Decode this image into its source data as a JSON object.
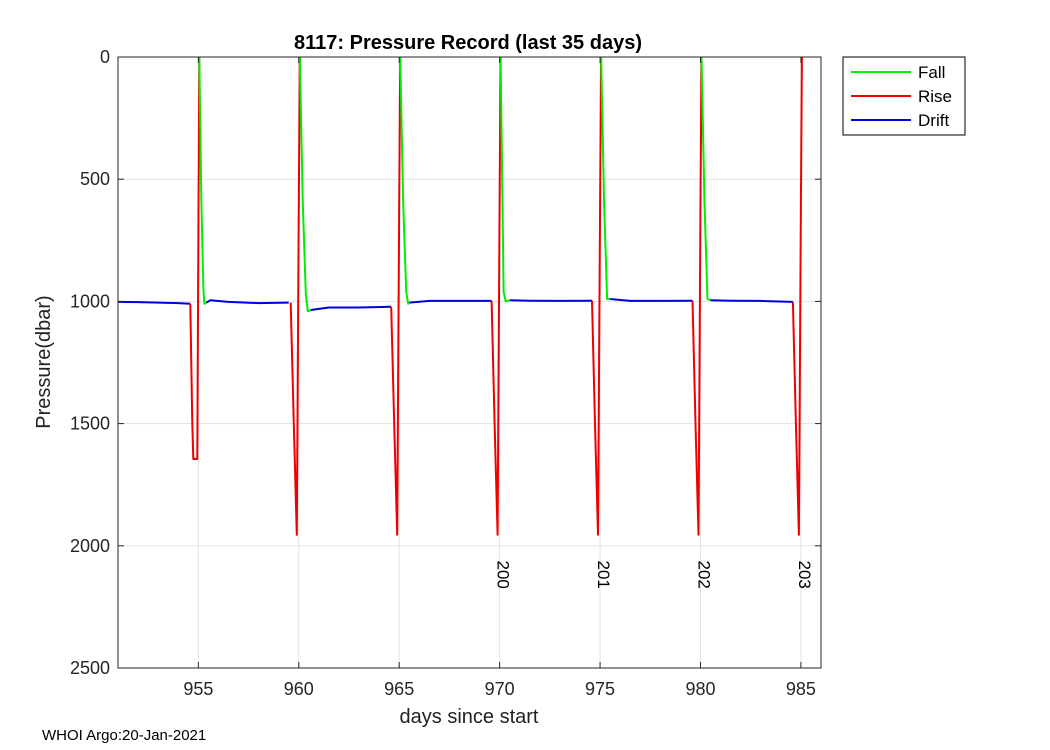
{
  "chart_data": {
    "type": "line",
    "title": "8117: Pressure Record (last 35 days)",
    "xlabel": "days since start",
    "ylabel": "Pressure(dbar)",
    "xlim": [
      951,
      986
    ],
    "ylim": [
      2500,
      0
    ],
    "y_reversed": true,
    "xticks": [
      955,
      960,
      965,
      970,
      975,
      980,
      985
    ],
    "yticks": [
      0,
      500,
      1000,
      1500,
      2000,
      2500
    ],
    "grid": true,
    "legend_position": "top-right outside",
    "legend": [
      "Fall",
      "Rise",
      "Drift"
    ],
    "colors": {
      "Fall": "#00ee00",
      "Rise": "#ee0000",
      "Drift": "#0000dd"
    },
    "series": [
      {
        "name": "Drift",
        "segments": [
          {
            "x": [
              951.0,
              952.0,
              953.0,
              954.0,
              954.6
            ],
            "y": [
              1002,
              1003,
              1005,
              1007,
              1010
            ]
          },
          {
            "x": [
              955.4,
              955.6,
              956.5,
              958.0,
              959.5
            ],
            "y": [
              1005,
              995,
              1002,
              1007,
              1005
            ]
          },
          {
            "x": [
              960.6,
              961.5,
              963.0,
              964.6
            ],
            "y": [
              1035,
              1025,
              1025,
              1022
            ]
          },
          {
            "x": [
              965.5,
              966.5,
              968.0,
              969.6
            ],
            "y": [
              1005,
              998,
              998,
              998
            ]
          },
          {
            "x": [
              970.5,
              971.5,
              973.0,
              974.6
            ],
            "y": [
              995,
              997,
              998,
              997
            ]
          },
          {
            "x": [
              975.5,
              976.5,
              978.0,
              979.6
            ],
            "y": [
              990,
              998,
              998,
              997
            ]
          },
          {
            "x": [
              980.5,
              981.5,
              983.0,
              984.6
            ],
            "y": [
              995,
              997,
              998,
              1002
            ]
          }
        ]
      },
      {
        "name": "Rise",
        "segments": [
          {
            "x": [
              954.6,
              954.7,
              954.75,
              954.95,
              955.0,
              955.05
            ],
            "y": [
              1010,
              1500,
              1645,
              1645,
              800,
              0
            ]
          },
          {
            "x": [
              959.6,
              959.75,
              959.9,
              960.0,
              960.05
            ],
            "y": [
              1005,
              1500,
              1955,
              600,
              0
            ]
          },
          {
            "x": [
              964.6,
              964.75,
              964.9,
              965.0,
              965.05
            ],
            "y": [
              1022,
              1500,
              1955,
              600,
              0
            ]
          },
          {
            "x": [
              969.6,
              969.75,
              969.9,
              970.0,
              970.05
            ],
            "y": [
              998,
              1500,
              1955,
              600,
              0
            ]
          },
          {
            "x": [
              974.6,
              974.75,
              974.9,
              975.0,
              975.05
            ],
            "y": [
              997,
              1500,
              1955,
              600,
              0
            ]
          },
          {
            "x": [
              979.6,
              979.75,
              979.9,
              980.0,
              980.05
            ],
            "y": [
              997,
              1500,
              1955,
              600,
              0
            ]
          },
          {
            "x": [
              984.6,
              984.75,
              984.9,
              985.0,
              985.05
            ],
            "y": [
              1002,
              1500,
              1955,
              600,
              0
            ]
          }
        ]
      },
      {
        "name": "Fall",
        "segments": [
          {
            "x": [
              955.05,
              955.15,
              955.25,
              955.3,
              955.4
            ],
            "y": [
              0,
              600,
              950,
              1010,
              1005
            ]
          },
          {
            "x": [
              960.05,
              960.2,
              960.35,
              960.45,
              960.6
            ],
            "y": [
              0,
              600,
              970,
              1040,
              1035
            ]
          },
          {
            "x": [
              965.05,
              965.2,
              965.35,
              965.45,
              965.5
            ],
            "y": [
              0,
              600,
              960,
              1010,
              1005
            ]
          },
          {
            "x": [
              970.05,
              970.2,
              970.3,
              970.5
            ],
            "y": [
              0,
              960,
              1000,
              995
            ]
          },
          {
            "x": [
              975.05,
              975.2,
              975.35,
              975.5
            ],
            "y": [
              0,
              600,
              990,
              990
            ]
          },
          {
            "x": [
              980.05,
              980.2,
              980.35,
              980.5
            ],
            "y": [
              0,
              600,
              990,
              995
            ]
          }
        ]
      }
    ],
    "annotations": [
      {
        "text": "200",
        "x": 969.9,
        "y": 2060,
        "rotation": "vertical"
      },
      {
        "text": "201",
        "x": 974.9,
        "y": 2060,
        "rotation": "vertical"
      },
      {
        "text": "202",
        "x": 979.9,
        "y": 2060,
        "rotation": "vertical"
      },
      {
        "text": "203",
        "x": 984.9,
        "y": 2060,
        "rotation": "vertical"
      }
    ]
  },
  "footer": {
    "text": "WHOI Argo:20-Jan-2021"
  }
}
